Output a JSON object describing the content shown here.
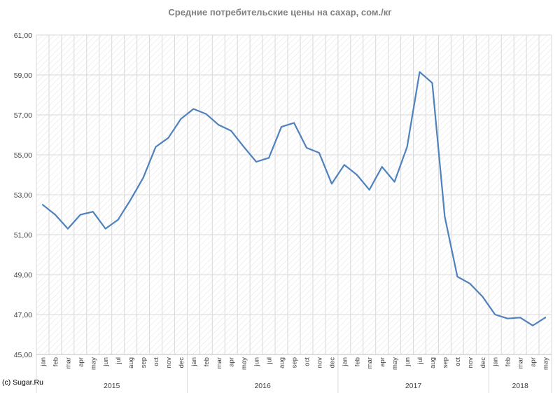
{
  "chart_data": {
    "type": "line",
    "title": "Средние потребительские цены на сахар, сом./кг",
    "xlabel": "",
    "ylabel": "",
    "ylim": [
      45,
      61
    ],
    "yticks": [
      "45,00",
      "47,00",
      "49,00",
      "51,00",
      "53,00",
      "55,00",
      "57,00",
      "59,00",
      "61,00"
    ],
    "grid": true,
    "legend": "none",
    "colors": {
      "line": "#4f81bd",
      "grid": "#d9d9d9",
      "text": "#404040",
      "title": "#7f7f7f"
    },
    "groups": [
      {
        "year": "2015",
        "months": [
          "jan",
          "feb",
          "mar",
          "apr",
          "may",
          "jun",
          "jul",
          "aug",
          "sep",
          "oct",
          "nov",
          "dec"
        ]
      },
      {
        "year": "2016",
        "months": [
          "jan",
          "feb",
          "mar",
          "apr",
          "may",
          "jun",
          "jul",
          "aug",
          "sep",
          "oct",
          "nov",
          "dec"
        ]
      },
      {
        "year": "2017",
        "months": [
          "jan",
          "feb",
          "mar",
          "apr",
          "may",
          "jun",
          "jul",
          "aug",
          "sep",
          "oct",
          "nov",
          "dec"
        ]
      },
      {
        "year": "2018",
        "months": [
          "jan",
          "feb",
          "mar",
          "apr",
          "may"
        ]
      }
    ],
    "series": [
      {
        "values": [
          52.5,
          52.0,
          51.3,
          52.0,
          52.15,
          51.3,
          51.75,
          52.75,
          53.85,
          55.4,
          55.85,
          56.8,
          57.3,
          57.05,
          56.5,
          56.2,
          55.4,
          54.65,
          54.85,
          56.4,
          56.6,
          55.35,
          55.1,
          53.55,
          54.5,
          54.0,
          53.25,
          54.4,
          53.65,
          55.4,
          59.15,
          58.6,
          51.9,
          48.9,
          48.55,
          47.9,
          47.0,
          46.8,
          46.85,
          46.45,
          46.85
        ]
      }
    ]
  },
  "copyright": "(c) Sugar.Ru"
}
